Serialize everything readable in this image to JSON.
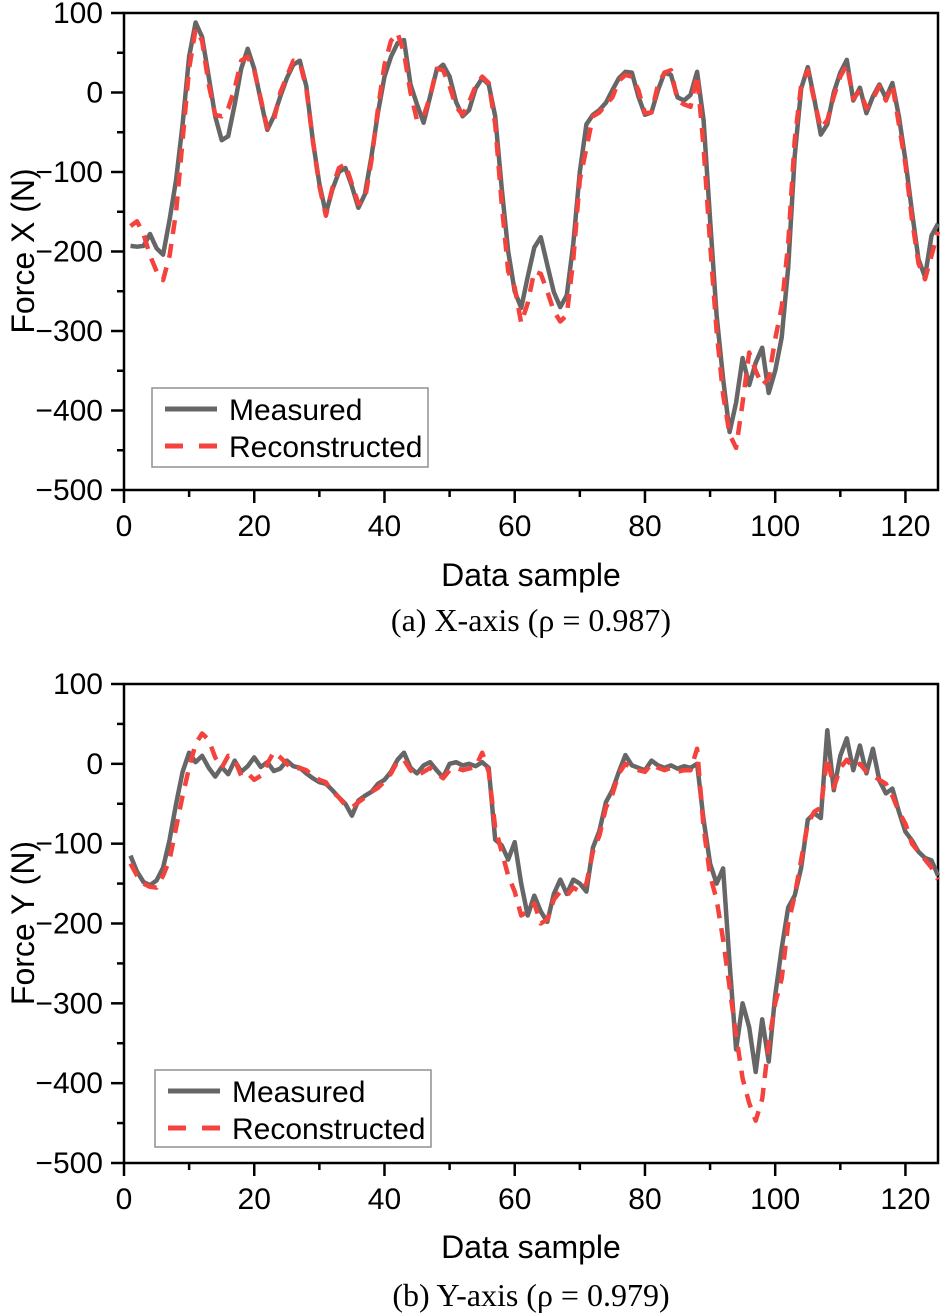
{
  "page": {
    "background": "#ffffff"
  },
  "colors": {
    "measured": "#666666",
    "reconstructed": "#f4423d",
    "axis": "#000000",
    "legend_border": "#909090"
  },
  "chart_data": [
    {
      "type": "line",
      "xlabel": "Data sample",
      "ylabel": "Force X (N)",
      "caption": "(a) X-axis (ρ = 0.987)",
      "rho": "0.987",
      "xlim": [
        0,
        125
      ],
      "ylim": [
        -500,
        100
      ],
      "x_major_ticks": [
        0,
        20,
        40,
        60,
        80,
        100,
        120
      ],
      "x_minor_ticks": [
        10,
        30,
        50,
        70,
        90,
        110
      ],
      "y_major_ticks": [
        100,
        0,
        -100,
        -200,
        -300,
        -400,
        -500
      ],
      "y_minor_ticks": [
        50,
        -50,
        -150,
        -250,
        -350,
        -450
      ],
      "legend": {
        "measured": "Measured",
        "reconstructed": "Reconstructed",
        "position": "bottom-left"
      },
      "grid": false,
      "x_start": 1,
      "x_step": 1,
      "series": [
        {
          "name": "Measured",
          "style": "solid",
          "color": "#666666",
          "values": [
            -193,
            -194,
            -193,
            -178,
            -196,
            -204,
            -160,
            -110,
            -40,
            45,
            88,
            70,
            20,
            -30,
            -60,
            -55,
            -15,
            30,
            55,
            30,
            -10,
            -47,
            -30,
            -5,
            18,
            35,
            40,
            8,
            -60,
            -115,
            -152,
            -122,
            -100,
            -95,
            -118,
            -145,
            -128,
            -80,
            -25,
            20,
            45,
            62,
            66,
            10,
            -15,
            -38,
            -5,
            28,
            35,
            20,
            -12,
            -30,
            -22,
            5,
            18,
            10,
            -30,
            -120,
            -200,
            -250,
            -271,
            -232,
            -195,
            -182,
            -217,
            -251,
            -270,
            -255,
            -190,
            -100,
            -40,
            -28,
            -22,
            -13,
            3,
            18,
            26,
            25,
            -5,
            -28,
            -25,
            3,
            25,
            22,
            -6,
            -10,
            -3,
            26,
            -35,
            -160,
            -280,
            -360,
            -427,
            -390,
            -334,
            -368,
            -340,
            -321,
            -378,
            -350,
            -308,
            -220,
            -80,
            5,
            32,
            -8,
            -53,
            -40,
            0,
            25,
            41,
            -10,
            6,
            -26,
            -5,
            10,
            -7,
            12,
            -30,
            -85,
            -150,
            -210,
            -232,
            -180,
            -165
          ]
        },
        {
          "name": "Reconstructed",
          "style": "dashed",
          "color": "#f4423d",
          "values": [
            -168,
            -162,
            -178,
            -205,
            -225,
            -236,
            -205,
            -150,
            -60,
            30,
            80,
            65,
            10,
            -28,
            -30,
            -20,
            5,
            40,
            45,
            28,
            -8,
            -45,
            -35,
            0,
            20,
            40,
            38,
            5,
            -60,
            -118,
            -155,
            -120,
            -95,
            -90,
            -115,
            -140,
            -135,
            -85,
            -20,
            35,
            65,
            75,
            50,
            0,
            -35,
            -30,
            -5,
            30,
            28,
            8,
            -18,
            -28,
            -12,
            8,
            20,
            12,
            -40,
            -140,
            -225,
            -245,
            -290,
            -265,
            -225,
            -228,
            -250,
            -275,
            -288,
            -280,
            -210,
            -110,
            -70,
            -30,
            -25,
            -15,
            -6,
            15,
            22,
            20,
            3,
            -26,
            -25,
            10,
            25,
            28,
            -10,
            -15,
            -18,
            22,
            -69,
            -190,
            -300,
            -380,
            -430,
            -447,
            -390,
            -327,
            -350,
            -368,
            -360,
            -310,
            -270,
            -190,
            -60,
            10,
            28,
            -10,
            -45,
            -35,
            -5,
            20,
            35,
            -8,
            3,
            -20,
            -8,
            8,
            -10,
            10,
            -40,
            -90,
            -160,
            -215,
            -235,
            -205,
            -175
          ]
        }
      ]
    },
    {
      "type": "line",
      "xlabel": "Data sample",
      "ylabel": "Force Y (N)",
      "caption": "(b) Y-axis (ρ = 0.979)",
      "rho": "0.979",
      "xlim": [
        0,
        125
      ],
      "ylim": [
        -500,
        100
      ],
      "x_major_ticks": [
        0,
        20,
        40,
        60,
        80,
        100,
        120
      ],
      "x_minor_ticks": [
        10,
        30,
        50,
        70,
        90,
        110
      ],
      "y_major_ticks": [
        100,
        0,
        -100,
        -200,
        -300,
        -400,
        -500
      ],
      "y_minor_ticks": [
        50,
        -50,
        -150,
        -250,
        -350,
        -450
      ],
      "legend": {
        "measured": "Measured",
        "reconstructed": "Reconstructed",
        "position": "bottom-left"
      },
      "grid": false,
      "x_start": 1,
      "x_step": 1,
      "series": [
        {
          "name": "Measured",
          "style": "solid",
          "color": "#666666",
          "values": [
            -115,
            -135,
            -148,
            -152,
            -146,
            -130,
            -95,
            -50,
            -10,
            14,
            2,
            10,
            -5,
            -16,
            -4,
            -13,
            4,
            -10,
            -3,
            8,
            -4,
            2,
            -9,
            -6,
            4,
            -3,
            -5,
            -12,
            -18,
            -23,
            -25,
            -33,
            -42,
            -50,
            -65,
            -46,
            -40,
            -35,
            -25,
            -20,
            -10,
            5,
            14,
            -5,
            -12,
            -2,
            2,
            -8,
            -17,
            0,
            2,
            -2,
            0,
            -3,
            2,
            -5,
            -95,
            -102,
            -120,
            -98,
            -150,
            -190,
            -165,
            -185,
            -198,
            -163,
            -145,
            -163,
            -145,
            -150,
            -160,
            -105,
            -84,
            -48,
            -33,
            -10,
            11,
            -2,
            -5,
            -8,
            4,
            -2,
            -5,
            -2,
            -6,
            -3,
            -5,
            0,
            -70,
            -125,
            -150,
            -131,
            -250,
            -358,
            -300,
            -330,
            -386,
            -320,
            -373,
            -290,
            -231,
            -180,
            -165,
            -130,
            -70,
            -62,
            -68,
            42,
            -33,
            10,
            32,
            -8,
            23,
            -12,
            19,
            -21,
            -37,
            -31,
            -60,
            -85,
            -96,
            -110,
            -118,
            -121,
            -140
          ]
        },
        {
          "name": "Reconstructed",
          "style": "dashed",
          "color": "#f4423d",
          "values": [
            -125,
            -140,
            -150,
            -154,
            -155,
            -140,
            -120,
            -80,
            -40,
            -5,
            25,
            38,
            30,
            8,
            -5,
            10,
            5,
            -15,
            -12,
            -20,
            -15,
            0,
            15,
            8,
            0,
            -8,
            -5,
            -8,
            -15,
            -20,
            -23,
            -35,
            -42,
            -52,
            -55,
            -48,
            -42,
            -35,
            -30,
            -22,
            -12,
            3,
            5,
            -8,
            -15,
            -10,
            -5,
            -12,
            -18,
            -8,
            -5,
            -8,
            -6,
            -4,
            14,
            -10,
            -80,
            -110,
            -140,
            -160,
            -190,
            -185,
            -175,
            -200,
            -195,
            -170,
            -160,
            -165,
            -155,
            -160,
            -150,
            -110,
            -90,
            -55,
            -38,
            -12,
            0,
            -5,
            -8,
            -10,
            0,
            -5,
            -8,
            -5,
            -10,
            -8,
            -8,
            19,
            -80,
            -140,
            -170,
            -220,
            -280,
            -340,
            -394,
            -425,
            -447,
            -420,
            -350,
            -300,
            -269,
            -200,
            -165,
            -120,
            -75,
            -60,
            -55,
            8,
            -30,
            -5,
            5,
            -5,
            0,
            -10,
            -15,
            -20,
            -25,
            -40,
            -60,
            -75,
            -100,
            -110,
            -120,
            -130,
            -145
          ]
        }
      ]
    }
  ]
}
